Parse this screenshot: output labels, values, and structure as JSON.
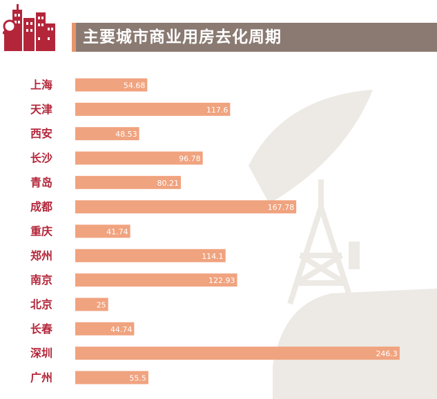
{
  "colors": {
    "bar": "#f0a37f",
    "title_band": "#8a7a72",
    "title_accent": "#e7956c",
    "category_text": "#b3263a",
    "logo": "#b3263a",
    "dish": "#ede9e4"
  },
  "icons": [
    "city-buildings-logo",
    "magnifier-icon",
    "satellite-dish-illustration"
  ],
  "chart_data": {
    "type": "bar",
    "orientation": "horizontal",
    "title": "主要城市商业用房去化周期",
    "xlabel": "",
    "ylabel": "",
    "grid": false,
    "legend": "none",
    "xlim": [
      0,
      250
    ],
    "categories": [
      "上海",
      "天津",
      "西安",
      "长沙",
      "青岛",
      "成都",
      "重庆",
      "郑州",
      "南京",
      "北京",
      "长春",
      "深圳",
      "广州"
    ],
    "values": [
      54.68,
      117.6,
      48.53,
      96.78,
      80.21,
      167.78,
      41.74,
      114.1,
      122.93,
      25,
      44.74,
      246.3,
      55.5
    ],
    "value_labels": [
      "54.68",
      "117.6",
      "48.53",
      "96.78",
      "80.21",
      "167.78",
      "41.74",
      "114.1",
      "122.93",
      "25",
      "44.74",
      "246.3",
      "55.5"
    ]
  }
}
